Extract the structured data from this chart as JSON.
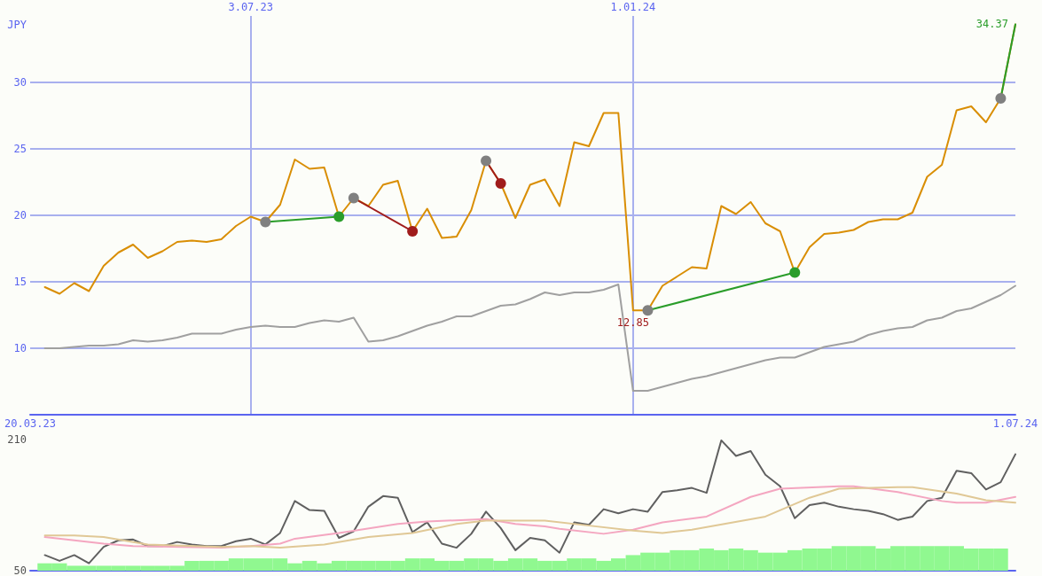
{
  "chart_data": [
    {
      "type": "line",
      "ylabel": "JPY",
      "grid": true,
      "x": [
        "2023-03-27",
        "2023-04-03",
        "2023-04-10",
        "2023-04-17",
        "2023-04-24",
        "2023-05-01",
        "2023-05-08",
        "2023-05-15",
        "2023-05-22",
        "2023-05-29",
        "2023-06-05",
        "2023-06-12",
        "2023-06-19",
        "2023-06-26",
        "2023-07-03",
        "2023-07-10",
        "2023-07-17",
        "2023-07-24",
        "2023-07-31",
        "2023-08-07",
        "2023-08-14",
        "2023-08-21",
        "2023-08-28",
        "2023-09-04",
        "2023-09-11",
        "2023-09-18",
        "2023-09-25",
        "2023-10-02",
        "2023-10-09",
        "2023-10-16",
        "2023-10-23",
        "2023-10-30",
        "2023-11-06",
        "2023-11-13",
        "2023-11-20",
        "2023-11-27",
        "2023-12-04",
        "2023-12-11",
        "2023-12-18",
        "2023-12-25",
        "2024-01-01",
        "2024-01-08",
        "2024-01-15",
        "2024-01-22",
        "2024-01-29",
        "2024-02-05",
        "2024-02-12",
        "2024-02-19",
        "2024-02-26",
        "2024-03-04",
        "2024-03-11",
        "2024-03-18",
        "2024-03-25",
        "2024-04-01",
        "2024-04-08",
        "2024-04-15",
        "2024-04-22",
        "2024-04-29",
        "2024-05-06",
        "2024-05-13",
        "2024-05-20",
        "2024-05-27",
        "2024-06-03",
        "2024-06-10",
        "2024-06-17",
        "2024-06-24",
        "2024-07-01"
      ],
      "xlim": [
        "2023-03-20",
        "2024-07-01"
      ],
      "xticks": [
        {
          "value": "2023-03-20",
          "label": "20.03.23"
        },
        {
          "value": "2024-07-01",
          "label": "1.07.24"
        }
      ],
      "x2lim": [
        "2023-03-20",
        "2024-07-01"
      ],
      "x2ticks": [
        {
          "value": "2023-07-03",
          "label": "3.07.23"
        },
        {
          "value": "2024-01-01",
          "label": "1.01.24"
        }
      ],
      "ylim": [
        5,
        35
      ],
      "yticks": [
        10,
        15,
        20,
        25,
        30
      ],
      "series": [
        {
          "color": "#d98e04",
          "marker": "none",
          "values": [
            14.6,
            14.1,
            14.9,
            14.3,
            16.2,
            17.2,
            17.8,
            16.8,
            17.3,
            18.0,
            18.1,
            18.0,
            18.2,
            19.2,
            19.9,
            19.5,
            20.8,
            24.2,
            23.5,
            23.6,
            19.9,
            21.3,
            20.7,
            22.3,
            22.6,
            18.8,
            20.5,
            18.3,
            18.4,
            20.4,
            24.1,
            22.4,
            19.8,
            22.3,
            22.7,
            20.7,
            25.5,
            25.2,
            27.7,
            27.7,
            12.85,
            12.85,
            14.7,
            15.4,
            16.1,
            16.0,
            20.7,
            20.1,
            21.0,
            19.4,
            18.8,
            15.7,
            17.6,
            18.6,
            18.7,
            18.9,
            19.5,
            19.7,
            19.7,
            20.2,
            22.9,
            23.8,
            27.9,
            28.2,
            27.0,
            28.8,
            34.37
          ],
          "value_labels": [
            null,
            null,
            null,
            null,
            null,
            null,
            null,
            null,
            null,
            null,
            null,
            null,
            null,
            null,
            null,
            null,
            null,
            null,
            null,
            null,
            null,
            null,
            null,
            null,
            null,
            null,
            null,
            null,
            null,
            null,
            null,
            null,
            null,
            null,
            null,
            null,
            null,
            null,
            null,
            null,
            "12.85",
            null,
            null,
            null,
            null,
            null,
            null,
            null,
            null,
            null,
            null,
            null,
            null,
            null,
            null,
            null,
            null,
            null,
            null,
            null,
            null,
            null,
            null,
            null,
            null,
            null,
            "34.37"
          ]
        },
        {
          "color": "#a0a0a0",
          "marker": "none",
          "values": [
            10.0,
            10.0,
            10.1,
            10.2,
            10.2,
            10.3,
            10.6,
            10.5,
            10.6,
            10.8,
            11.1,
            11.1,
            11.1,
            11.4,
            11.6,
            11.7,
            11.6,
            11.6,
            11.9,
            12.1,
            12.0,
            12.3,
            10.5,
            10.6,
            10.9,
            11.3,
            11.7,
            12.0,
            12.4,
            12.4,
            12.8,
            13.2,
            13.3,
            13.7,
            14.2,
            14.0,
            14.2,
            14.2,
            14.4,
            14.8,
            6.8,
            6.8,
            7.1,
            7.4,
            7.7,
            7.9,
            8.2,
            8.5,
            8.8,
            9.1,
            9.3,
            9.3,
            9.7,
            10.1,
            10.3,
            10.5,
            11.0,
            11.3,
            11.5,
            11.6,
            12.1,
            12.3,
            12.8,
            13.0,
            13.5,
            14.0,
            14.7
          ]
        },
        {
          "color": "#2a9d2a",
          "marker": "none",
          "x": [
            "2023-07-10",
            "2023-08-14"
          ],
          "values": [
            19.5,
            19.9
          ]
        },
        {
          "color": "#a01c1c",
          "marker": "none",
          "x": [
            "2023-08-21",
            "2023-09-18"
          ],
          "values": [
            21.3,
            18.8
          ]
        },
        {
          "color": "#a01c1c",
          "marker": "none",
          "x": [
            "2023-10-23",
            "2023-10-30"
          ],
          "values": [
            24.1,
            22.4
          ]
        },
        {
          "color": "#2a9d2a",
          "marker": "none",
          "x": [
            "2024-01-08",
            "2024-03-18"
          ],
          "values": [
            12.85,
            15.7
          ]
        },
        {
          "color": "#2a9d2a",
          "marker": "none",
          "x": [
            "2024-06-24",
            "2024-07-01"
          ],
          "values": [
            28.8,
            34.37
          ]
        },
        {
          "type": "scatter",
          "color": "#808080",
          "marker": "circle",
          "x": [
            "2023-07-10",
            "2023-08-21",
            "2023-10-23",
            "2024-01-08",
            "2024-06-24"
          ],
          "values": [
            19.5,
            21.3,
            24.1,
            12.85,
            28.8
          ]
        },
        {
          "type": "scatter",
          "color": "#2a9d2a",
          "marker": "circle",
          "x": [
            "2023-08-14",
            "2024-03-18"
          ],
          "values": [
            19.9,
            15.7
          ]
        },
        {
          "type": "scatter",
          "color": "#a01c1c",
          "marker": "circle",
          "x": [
            "2023-09-18",
            "2023-10-30"
          ],
          "values": [
            18.8,
            22.4
          ]
        }
      ]
    },
    {
      "type": "line",
      "grid": false,
      "tick_labels": "y",
      "x": [
        "2023-03-27",
        "2023-04-03",
        "2023-04-10",
        "2023-04-17",
        "2023-04-24",
        "2023-05-01",
        "2023-05-08",
        "2023-05-15",
        "2023-05-22",
        "2023-05-29",
        "2023-06-05",
        "2023-06-12",
        "2023-06-19",
        "2023-06-26",
        "2023-07-03",
        "2023-07-10",
        "2023-07-17",
        "2023-07-24",
        "2023-07-31",
        "2023-08-07",
        "2023-08-14",
        "2023-08-21",
        "2023-08-28",
        "2023-09-04",
        "2023-09-11",
        "2023-09-18",
        "2023-09-25",
        "2023-10-02",
        "2023-10-09",
        "2023-10-16",
        "2023-10-23",
        "2023-10-30",
        "2023-11-06",
        "2023-11-13",
        "2023-11-20",
        "2023-11-27",
        "2023-12-04",
        "2023-12-11",
        "2023-12-18",
        "2023-12-25",
        "2024-01-01",
        "2024-01-08",
        "2024-01-15",
        "2024-01-22",
        "2024-01-29",
        "2024-02-05",
        "2024-02-12",
        "2024-02-19",
        "2024-02-26",
        "2024-03-04",
        "2024-03-11",
        "2024-03-18",
        "2024-03-25",
        "2024-04-01",
        "2024-04-08",
        "2024-04-15",
        "2024-04-22",
        "2024-04-29",
        "2024-05-06",
        "2024-05-13",
        "2024-05-20",
        "2024-05-27",
        "2024-06-03",
        "2024-06-10",
        "2024-06-17",
        "2024-06-24",
        "2024-07-01"
      ],
      "xlim": [
        "2023-03-20",
        "2024-07-01"
      ],
      "ylim": [
        50,
        210
      ],
      "yticks": [
        50,
        210
      ],
      "series": [
        {
          "type": "bar",
          "color": "#90f890",
          "x": [
            "2023-03-27",
            "2023-04-03",
            "2023-04-10",
            "2023-04-17",
            "2023-04-24",
            "2023-05-01",
            "2023-05-08",
            "2023-05-15",
            "2023-05-22",
            "2023-05-29",
            "2023-06-05",
            "2023-06-12",
            "2023-06-19",
            "2023-06-26",
            "2023-07-03",
            "2023-07-10",
            "2023-07-17",
            "2023-07-24",
            "2023-07-31",
            "2023-08-07",
            "2023-08-14",
            "2023-08-21",
            "2023-08-28",
            "2023-09-04",
            "2023-09-11",
            "2023-09-18",
            "2023-09-25",
            "2023-10-02",
            "2023-10-09",
            "2023-10-16",
            "2023-10-23",
            "2023-10-30",
            "2023-11-06",
            "2023-11-13",
            "2023-11-20",
            "2023-11-27",
            "2023-12-04",
            "2023-12-11",
            "2023-12-18",
            "2023-12-25",
            "2024-01-01",
            "2024-01-08",
            "2024-01-15",
            "2024-01-22",
            "2024-01-29",
            "2024-02-05",
            "2024-02-12",
            "2024-02-19",
            "2024-02-26",
            "2024-03-04",
            "2024-03-11",
            "2024-03-18",
            "2024-03-25",
            "2024-04-01",
            "2024-04-08",
            "2024-04-15",
            "2024-04-22",
            "2024-04-29",
            "2024-05-06",
            "2024-05-13",
            "2024-05-20",
            "2024-05-27",
            "2024-06-03",
            "2024-06-10",
            "2024-06-17",
            "2024-06-24"
          ],
          "values": [
            59,
            59,
            56,
            56,
            56,
            56,
            56,
            56,
            56,
            56,
            62,
            62,
            62,
            65,
            65,
            65,
            65,
            59,
            62,
            59,
            62,
            62,
            62,
            62,
            62,
            65,
            65,
            62,
            62,
            65,
            65,
            62,
            65,
            65,
            62,
            62,
            65,
            65,
            62,
            65,
            69,
            72,
            72,
            75,
            75,
            77,
            75,
            77,
            75,
            72,
            72,
            75,
            77,
            77,
            80,
            80,
            80,
            77,
            80,
            80,
            80,
            80,
            80,
            77,
            77,
            77
          ]
        },
        {
          "color": "#606060",
          "marker": "none",
          "values": [
            69,
            62,
            69,
            59,
            79,
            87,
            88,
            80,
            80,
            85,
            82,
            80,
            80,
            86,
            89,
            82,
            96,
            135,
            124,
            123,
            90,
            98,
            128,
            141,
            139,
            97,
            109,
            83,
            78,
            95,
            122,
            102,
            75,
            90,
            87,
            72,
            109,
            106,
            125,
            120,
            125,
            122,
            146,
            148,
            151,
            145,
            209,
            190,
            196,
            167,
            153,
            114,
            130,
            133,
            128,
            125,
            123,
            119,
            112,
            116,
            135,
            139,
            172,
            169,
            149,
            158,
            192
          ]
        },
        {
          "color": "#f4a6c0",
          "marker": "none",
          "x": [
            "2023-03-27",
            "2023-04-24",
            "2023-05-08",
            "2023-06-19",
            "2023-07-03",
            "2023-07-17",
            "2023-07-24",
            "2023-08-14",
            "2023-09-11",
            "2023-09-25",
            "2023-10-23",
            "2023-11-06",
            "2023-11-20",
            "2023-11-27",
            "2023-12-18",
            "2024-01-01",
            "2024-01-15",
            "2024-02-05",
            "2024-02-26",
            "2024-03-11",
            "2024-04-08",
            "2024-04-15",
            "2024-05-06",
            "2024-05-27",
            "2024-06-03",
            "2024-06-17",
            "2024-07-01"
          ],
          "values": [
            91,
            83,
            80,
            78,
            80,
            83,
            89,
            96,
            107,
            110,
            113,
            107,
            104,
            101,
            95,
            100,
            109,
            116,
            140,
            150,
            153,
            153,
            146,
            135,
            133,
            133,
            140
          ]
        },
        {
          "color": "#e0c896",
          "marker": "none",
          "x": [
            "2023-03-27",
            "2023-04-10",
            "2023-04-24",
            "2023-05-15",
            "2023-06-19",
            "2023-07-03",
            "2023-07-17",
            "2023-08-07",
            "2023-08-28",
            "2023-09-18",
            "2023-10-09",
            "2023-10-23",
            "2023-11-20",
            "2023-12-11",
            "2024-01-01",
            "2024-01-15",
            "2024-01-29",
            "2024-03-04",
            "2024-03-25",
            "2024-04-08",
            "2024-05-06",
            "2024-05-13",
            "2024-06-03",
            "2024-06-17",
            "2024-07-01"
          ],
          "values": [
            93,
            93,
            91,
            82,
            79,
            80,
            78,
            82,
            91,
            96,
            107,
            111,
            111,
            105,
            99,
            96,
            100,
            116,
            139,
            150,
            152,
            152,
            144,
            136,
            133
          ]
        }
      ]
    }
  ]
}
